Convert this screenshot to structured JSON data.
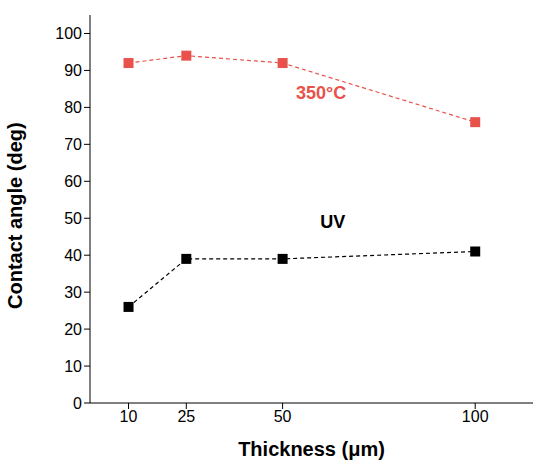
{
  "chart_data": {
    "type": "line",
    "x": [
      10,
      25,
      50,
      100
    ],
    "xlabel": "Thickness (μm)",
    "ylabel": "Contact angle (deg)",
    "xlim": [
      0,
      115
    ],
    "xticks": [
      10,
      25,
      50,
      100
    ],
    "ylim": [
      0,
      105
    ],
    "yticks": [
      0,
      10,
      20,
      30,
      40,
      50,
      60,
      70,
      80,
      90,
      100
    ],
    "grid": false,
    "series": [
      {
        "name": "350°C",
        "color": "#e8524a",
        "values": [
          92,
          94,
          92,
          76
        ],
        "marker": "square",
        "line_style": "dashed"
      },
      {
        "name": "UV",
        "color": "#000000",
        "values": [
          26,
          39,
          39,
          41
        ],
        "marker": "square",
        "line_style": "dashed"
      }
    ]
  }
}
